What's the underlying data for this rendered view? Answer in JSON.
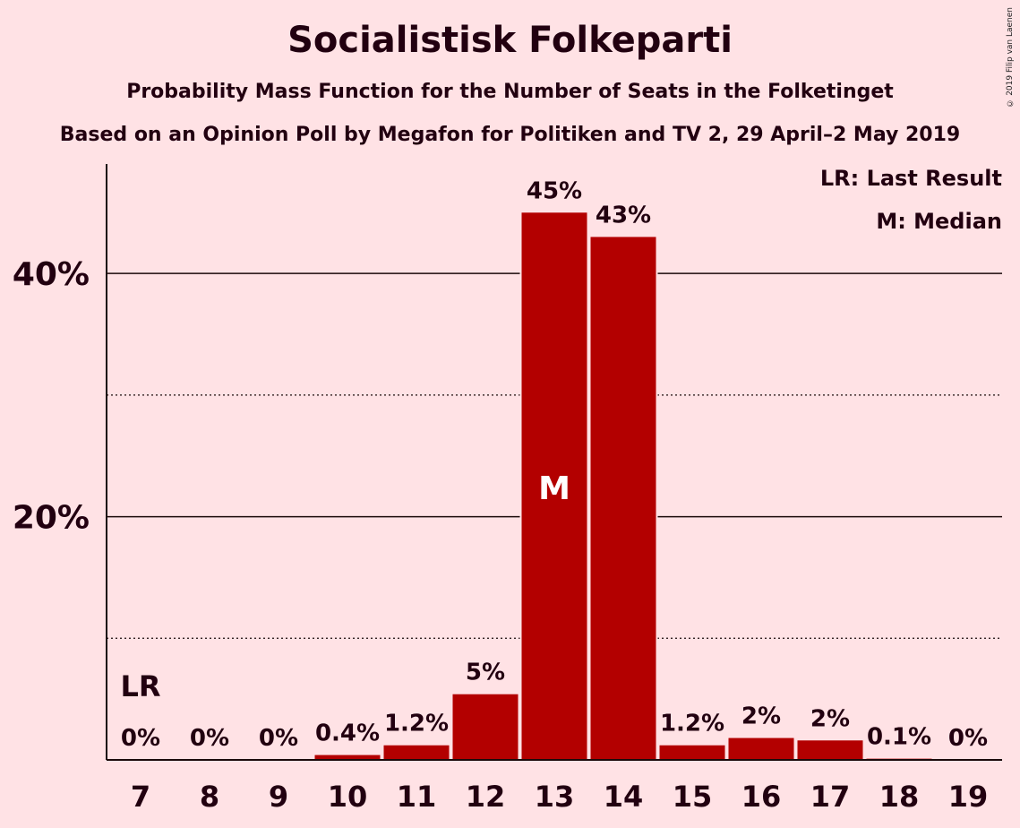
{
  "header": {
    "title": "Socialistisk Folkeparti",
    "subtitle": "Probability Mass Function for the Number of Seats in the Folketinget",
    "source": "Based on an Opinion Poll by Megafon for Politiken and TV 2, 29 April–2 May 2019",
    "copyright": "© 2019 Filip van Laenen"
  },
  "legend": {
    "last_result": "LR: Last Result",
    "median": "M: Median"
  },
  "chart_data": {
    "type": "bar",
    "title": "Socialistisk Folkeparti",
    "categories": [
      "7",
      "8",
      "9",
      "10",
      "11",
      "12",
      "13",
      "14",
      "15",
      "16",
      "17",
      "18",
      "19"
    ],
    "values": [
      0,
      0,
      0,
      0.4,
      1.2,
      5.4,
      45,
      43,
      1.2,
      1.8,
      1.6,
      0.1,
      0
    ],
    "labels": [
      "0%",
      "0%",
      "0%",
      "0.4%",
      "1.2%",
      "5%",
      "45%",
      "43%",
      "1.2%",
      "2%",
      "2%",
      "0.1%",
      "0%"
    ],
    "ylim": [
      0,
      49
    ],
    "yticks_major": [
      20,
      40
    ],
    "ytick_labels": [
      "20%",
      "40%"
    ],
    "yticks_minor": [
      10,
      30
    ],
    "last_result_category": "7",
    "last_result_marker": "LR",
    "median_category": "13",
    "median_marker": "M",
    "bar_color": "#B30000",
    "background": "#FFE2E5",
    "legend_position": "top-right"
  }
}
